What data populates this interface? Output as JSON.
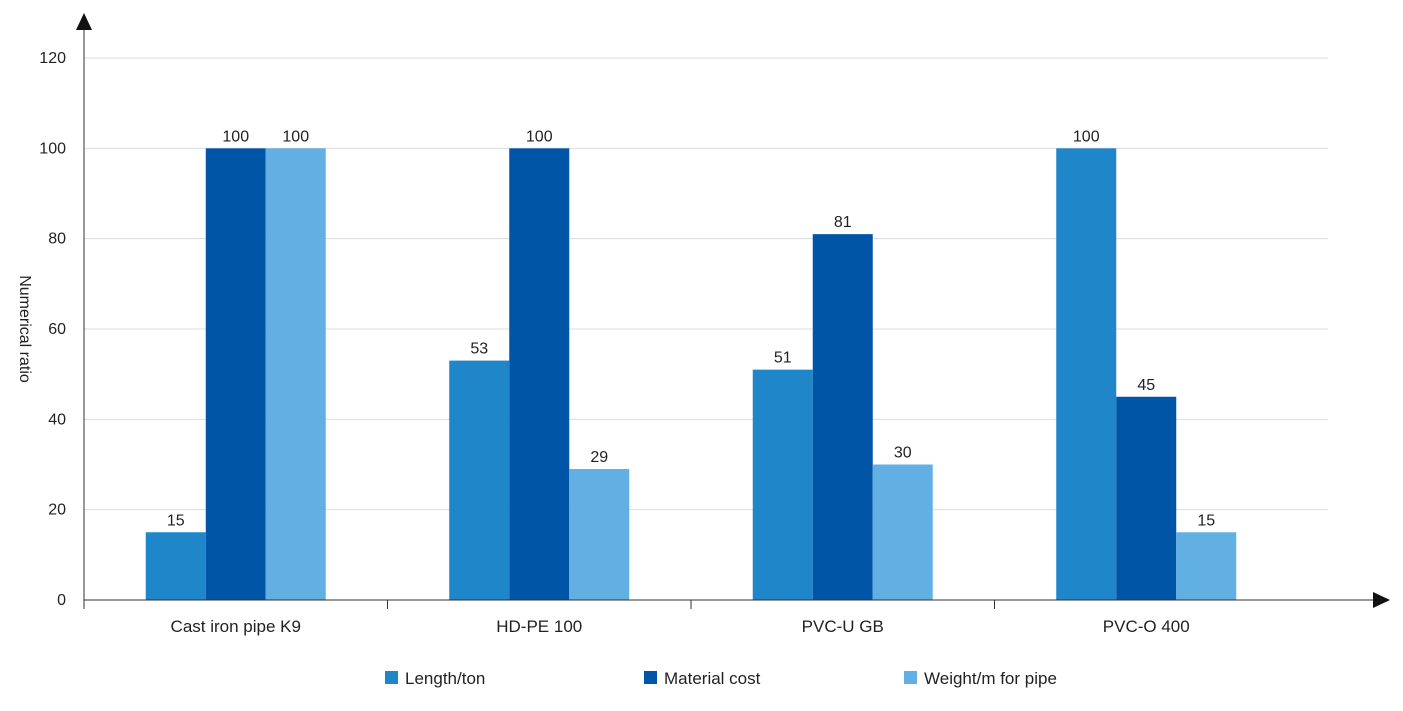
{
  "chart_data": {
    "type": "bar",
    "title": "",
    "xlabel": "",
    "ylabel": "Numerical ratio",
    "ylim": [
      0,
      120
    ],
    "yticks": [
      0,
      20,
      40,
      60,
      80,
      100,
      120
    ],
    "grid": true,
    "legend_position": "bottom",
    "categories": [
      "Cast iron pipe K9",
      "HD-PE 100",
      "PVC-U GB",
      "PVC-O 400"
    ],
    "series": [
      {
        "name": "Length/ton",
        "color": "#1e86c9",
        "values": [
          15,
          53,
          51,
          100
        ]
      },
      {
        "name": "Material cost",
        "color": "#0055a6",
        "values": [
          100,
          100,
          81,
          45
        ]
      },
      {
        "name": "Weight/m for pipe",
        "color": "#62b0e3",
        "values": [
          100,
          29,
          30,
          15
        ]
      }
    ]
  }
}
